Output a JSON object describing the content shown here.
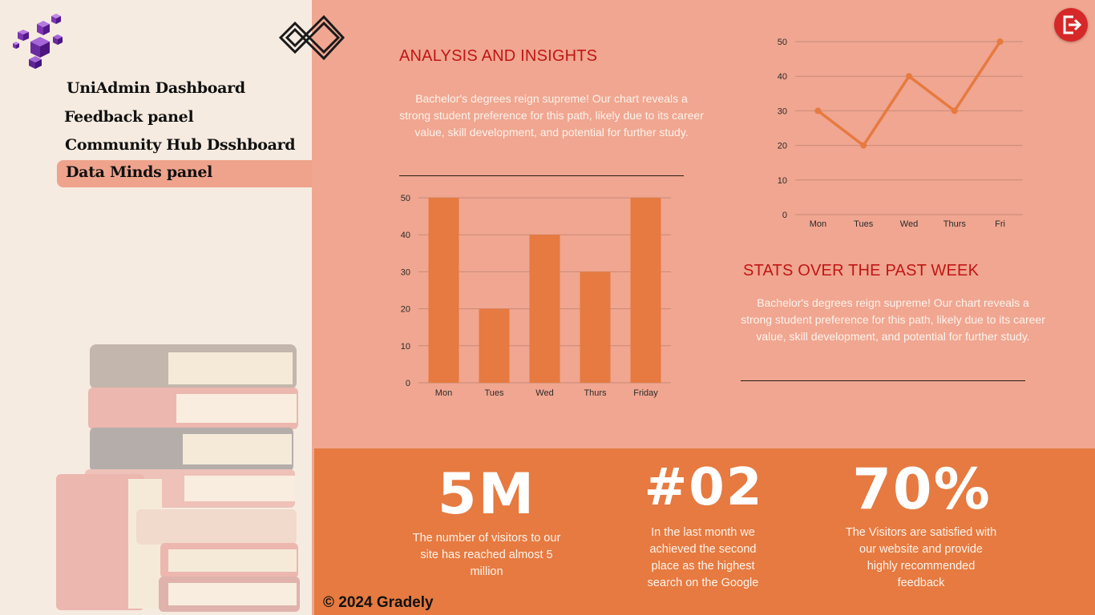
{
  "nav": {
    "items": [
      {
        "label": "UniAdmin Dashboard"
      },
      {
        "label": "Feedback panel"
      },
      {
        "label": "Community Hub Dsshboard"
      },
      {
        "label": "Data Minds panel"
      }
    ],
    "active_index": 3
  },
  "analysis": {
    "title": "ANALYSIS AND INSIGHTS",
    "text": "Bachelor's degrees reign supreme! Our chart reveals a strong student preference for this path, likely due to its career value, skill development, and potential for further study."
  },
  "week_stats": {
    "title": "STATS OVER THE PAST WEEK",
    "text": "Bachelor's degrees reign supreme! Our chart reveals a strong student preference for this path, likely due to its career value, skill development, and potential for further study."
  },
  "stats": [
    {
      "value": "5M",
      "text": "The number of visitors to our site has reached almost 5 million"
    },
    {
      "value": "#02",
      "text": "In the last month we achieved the second place as the highest search on the Google"
    },
    {
      "value": "70%",
      "text": "The Visitors are satisfied with our website and provide highly recommended feedback"
    }
  ],
  "footer": "© 2024 Gradely",
  "icons": {
    "logout": "logout-icon",
    "logo": "logo-icon",
    "cubes": "cubes-icon",
    "books": "books-illustration"
  },
  "colors": {
    "accent": "#e67a40",
    "heading": "#c01616",
    "logout": "#d62828"
  },
  "chart_data": [
    {
      "type": "bar",
      "categories": [
        "Mon",
        "Tues",
        "Wed",
        "Thurs",
        "Friday"
      ],
      "values": [
        50,
        20,
        40,
        30,
        50
      ],
      "ylim": [
        0,
        50
      ],
      "yticks": [
        0,
        10,
        20,
        30,
        40,
        50
      ],
      "grid": true
    },
    {
      "type": "line",
      "categories": [
        "Mon",
        "Tues",
        "Wed",
        "Thurs",
        "Fri"
      ],
      "values": [
        30,
        20,
        40,
        30,
        50
      ],
      "ylim": [
        0,
        50
      ],
      "yticks": [
        0,
        10,
        20,
        30,
        40,
        50
      ],
      "grid": true
    }
  ]
}
